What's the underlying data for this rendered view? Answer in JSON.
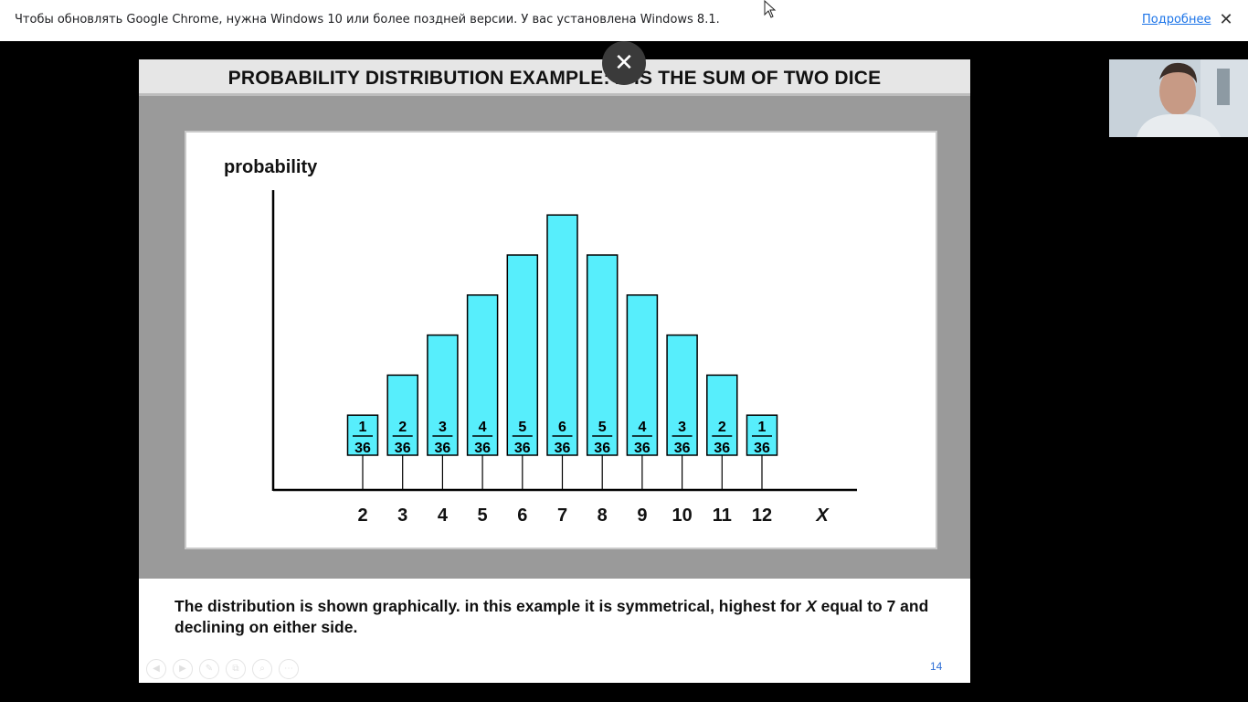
{
  "infobar": {
    "message": "Чтобы обновлять Google Chrome, нужна Windows 10 или более поздней версии. У вас установлена Windows 8.1.",
    "link": "Подробнее",
    "close_glyph": "✕"
  },
  "overlay": {
    "close_glyph": "✕"
  },
  "slide": {
    "title": "PROBABILITY DISTRIBUTION EXAMPLE: X IS THE SUM OF TWO DICE",
    "caption_parts": [
      "The distribution is shown graphically.  in this example it is symmetrical, highest for ",
      "X",
      " equal to 7 and declining on either side."
    ],
    "page_number": "14",
    "nav_tools": [
      "◀",
      "▶",
      "✎",
      "⧉",
      "⌕",
      "⋯"
    ]
  },
  "chart_data": {
    "type": "bar",
    "ylabel": "probability",
    "xlabel": "X",
    "categories": [
      "2",
      "3",
      "4",
      "5",
      "6",
      "7",
      "8",
      "9",
      "10",
      "11",
      "12"
    ],
    "numerators": [
      "1",
      "2",
      "3",
      "4",
      "5",
      "6",
      "5",
      "4",
      "3",
      "2",
      "1"
    ],
    "denominators": [
      "36",
      "36",
      "36",
      "36",
      "36",
      "36",
      "36",
      "36",
      "36",
      "36",
      "36"
    ],
    "values": [
      1,
      2,
      3,
      4,
      5,
      6,
      5,
      4,
      3,
      2,
      1
    ],
    "bar_color": "#57eefc"
  },
  "colors": {
    "link": "#1a73e8",
    "page_number": "#2e6fd6"
  }
}
